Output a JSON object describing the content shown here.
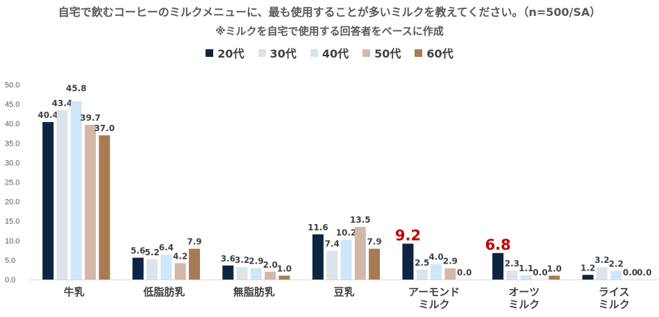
{
  "chart_data": {
    "type": "bar",
    "title": "自宅で飲むコーヒーのミルクメニューに、最も使用することが多いミルクを教えてください。（n=500/SA）",
    "subtitle": "※ミルクを自宅で使用する回答者をベースに作成",
    "categories": [
      "牛乳",
      "低脂肪乳",
      "無脂肪乳",
      "豆乳",
      "アーモンド\nミルク",
      "オーツ\nミルク",
      "ライス\nミルク"
    ],
    "series": [
      {
        "name": "20代",
        "color": "#0e2441",
        "values": [
          40.4,
          5.6,
          3.6,
          11.6,
          9.2,
          6.8,
          1.2
        ]
      },
      {
        "name": "30代",
        "color": "#dde3ea",
        "values": [
          43.4,
          5.2,
          3.2,
          7.4,
          2.5,
          2.3,
          3.2
        ]
      },
      {
        "name": "40代",
        "color": "#cfe6f8",
        "values": [
          45.8,
          6.4,
          2.9,
          10.2,
          4.0,
          1.1,
          2.2
        ]
      },
      {
        "name": "50代",
        "color": "#d3b8a9",
        "values": [
          39.7,
          4.2,
          2.0,
          13.5,
          2.9,
          0.0,
          0.0
        ]
      },
      {
        "name": "60代",
        "color": "#a87c52",
        "values": [
          37.0,
          7.9,
          1.0,
          7.9,
          0.0,
          1.0,
          0.0
        ]
      }
    ],
    "highlight_labels": [
      {
        "category_index": 4,
        "series_index": 0,
        "text": "9.2",
        "color": "#c00000"
      },
      {
        "category_index": 5,
        "series_index": 0,
        "text": "6.8",
        "color": "#c00000"
      }
    ],
    "ylim": [
      0,
      50
    ],
    "yticks": [
      "0.0",
      "5.0",
      "10.0",
      "15.0",
      "20.0",
      "25.0",
      "30.0",
      "35.0",
      "40.0",
      "45.0",
      "50.0"
    ],
    "grid": false,
    "legend": "top-center"
  }
}
